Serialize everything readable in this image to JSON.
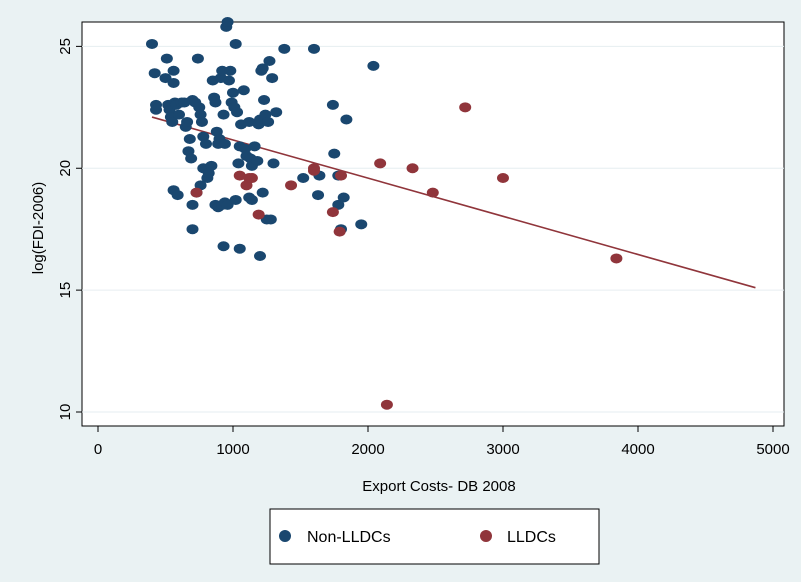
{
  "chart_data": {
    "type": "scatter",
    "title": "",
    "xlabel": "Export Costs- DB 2008",
    "ylabel": "log(FDI-2006)",
    "xlim": [
      0,
      5000
    ],
    "ylim": [
      10,
      26
    ],
    "x_ticks": [
      0,
      1000,
      2000,
      3000,
      4000,
      5000
    ],
    "y_ticks": [
      10,
      15,
      20,
      25
    ],
    "grid": "horizontal",
    "legend_position": "bottom",
    "series": [
      {
        "name": "Non-LLDCs",
        "color": "#1a476f",
        "points": [
          [
            400,
            25.1
          ],
          [
            420,
            23.9
          ],
          [
            430,
            22.6
          ],
          [
            430,
            22.4
          ],
          [
            500,
            23.7
          ],
          [
            510,
            24.5
          ],
          [
            520,
            22.6
          ],
          [
            530,
            22.4
          ],
          [
            540,
            22.1
          ],
          [
            550,
            21.9
          ],
          [
            560,
            24.0
          ],
          [
            560,
            23.5
          ],
          [
            570,
            22.7
          ],
          [
            580,
            22.6
          ],
          [
            600,
            22.2
          ],
          [
            620,
            22.7
          ],
          [
            640,
            22.7
          ],
          [
            650,
            21.7
          ],
          [
            660,
            21.9
          ],
          [
            670,
            20.7
          ],
          [
            680,
            21.2
          ],
          [
            690,
            20.4
          ],
          [
            700,
            22.8
          ],
          [
            720,
            22.7
          ],
          [
            740,
            24.5
          ],
          [
            750,
            22.5
          ],
          [
            760,
            22.2
          ],
          [
            770,
            21.9
          ],
          [
            780,
            21.3
          ],
          [
            780,
            20.0
          ],
          [
            800,
            21.0
          ],
          [
            810,
            19.6
          ],
          [
            820,
            19.8
          ],
          [
            840,
            20.1
          ],
          [
            850,
            23.6
          ],
          [
            860,
            22.9
          ],
          [
            870,
            22.7
          ],
          [
            880,
            21.5
          ],
          [
            890,
            21.0
          ],
          [
            900,
            21.2
          ],
          [
            910,
            23.7
          ],
          [
            920,
            24.0
          ],
          [
            930,
            22.2
          ],
          [
            940,
            21.0
          ],
          [
            950,
            25.8
          ],
          [
            960,
            26.0
          ],
          [
            970,
            23.6
          ],
          [
            980,
            24.0
          ],
          [
            990,
            22.7
          ],
          [
            1000,
            23.1
          ],
          [
            1010,
            22.5
          ],
          [
            1020,
            25.1
          ],
          [
            1030,
            22.3
          ],
          [
            1040,
            20.2
          ],
          [
            1050,
            20.9
          ],
          [
            1060,
            21.8
          ],
          [
            1080,
            23.2
          ],
          [
            1090,
            20.8
          ],
          [
            1100,
            20.5
          ],
          [
            1120,
            21.9
          ],
          [
            1130,
            20.4
          ],
          [
            1140,
            20.1
          ],
          [
            1160,
            20.9
          ],
          [
            1180,
            20.3
          ],
          [
            1190,
            21.8
          ],
          [
            1200,
            22.0
          ],
          [
            1210,
            24.0
          ],
          [
            1220,
            24.1
          ],
          [
            1230,
            22.8
          ],
          [
            1240,
            22.2
          ],
          [
            1260,
            21.9
          ],
          [
            1270,
            24.4
          ],
          [
            1290,
            23.7
          ],
          [
            1300,
            20.2
          ],
          [
            1320,
            22.3
          ],
          [
            1380,
            24.9
          ],
          [
            730,
            19.0
          ],
          [
            760,
            19.3
          ],
          [
            870,
            18.5
          ],
          [
            890,
            18.4
          ],
          [
            920,
            18.5
          ],
          [
            940,
            18.6
          ],
          [
            960,
            18.5
          ],
          [
            1020,
            18.7
          ],
          [
            1120,
            18.8
          ],
          [
            1140,
            18.7
          ],
          [
            1220,
            19.0
          ],
          [
            1250,
            17.9
          ],
          [
            1280,
            17.9
          ],
          [
            560,
            19.1
          ],
          [
            590,
            18.9
          ],
          [
            700,
            18.5
          ],
          [
            700,
            17.5
          ],
          [
            930,
            16.8
          ],
          [
            1050,
            16.7
          ],
          [
            1200,
            16.4
          ],
          [
            1600,
            24.9
          ],
          [
            1740,
            22.6
          ],
          [
            1840,
            22.0
          ],
          [
            2040,
            24.2
          ],
          [
            1520,
            19.6
          ],
          [
            1640,
            19.7
          ],
          [
            1750,
            20.6
          ],
          [
            1780,
            19.7
          ],
          [
            1780,
            18.5
          ],
          [
            1820,
            18.8
          ],
          [
            1630,
            18.9
          ],
          [
            1800,
            17.5
          ],
          [
            1950,
            17.7
          ]
        ]
      },
      {
        "name": "LLDCs",
        "color": "#90353b",
        "points": [
          [
            730,
            19.0
          ],
          [
            1050,
            19.7
          ],
          [
            1100,
            19.3
          ],
          [
            1120,
            19.6
          ],
          [
            1140,
            19.6
          ],
          [
            1190,
            18.1
          ],
          [
            1430,
            19.3
          ],
          [
            1600,
            20.0
          ],
          [
            1600,
            19.9
          ],
          [
            1740,
            18.2
          ],
          [
            1790,
            17.4
          ],
          [
            1800,
            19.7
          ],
          [
            2090,
            20.2
          ],
          [
            2330,
            20.0
          ],
          [
            2480,
            19.0
          ],
          [
            2720,
            22.5
          ],
          [
            3000,
            19.6
          ],
          [
            3840,
            16.3
          ],
          [
            2140,
            10.3
          ]
        ]
      }
    ],
    "fit_line": {
      "color": "#90353b",
      "points": [
        [
          400,
          22.1
        ],
        [
          4870,
          15.1
        ]
      ]
    }
  }
}
